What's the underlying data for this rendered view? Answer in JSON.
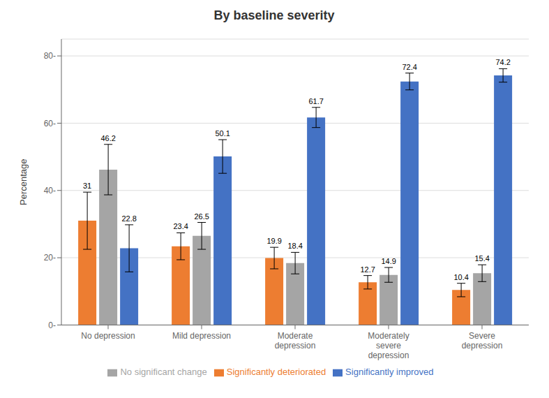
{
  "chart_data": {
    "type": "bar",
    "title": "By baseline severity",
    "ylabel": "Percentage",
    "categories": [
      "No depression",
      "Mild depression",
      "Moderate\ndepression",
      "Moderately\nsevere\ndepression",
      "Severe\ndepression"
    ],
    "series": [
      {
        "name": "Significantly deteriorated",
        "color": "#ED7D31",
        "values": [
          31,
          23.4,
          19.9,
          12.7,
          10.4
        ],
        "errors": [
          8.5,
          4.0,
          3.2,
          2.0,
          2.0
        ]
      },
      {
        "name": "No significant change",
        "color": "#A5A5A5",
        "values": [
          46.2,
          26.5,
          18.4,
          14.9,
          15.4
        ],
        "errors": [
          7.5,
          4.0,
          3.2,
          2.2,
          2.5
        ]
      },
      {
        "name": "Significantly improved",
        "color": "#4472C4",
        "values": [
          22.8,
          50.1,
          61.7,
          72.4,
          74.2
        ],
        "errors": [
          7.0,
          5.0,
          3.0,
          2.5,
          2.0
        ]
      }
    ],
    "ylim": [
      0,
      85
    ],
    "yticks": [
      {
        "value": 0,
        "label": "0-"
      },
      {
        "value": 20,
        "label": "20-"
      },
      {
        "value": 40,
        "label": "40-"
      },
      {
        "value": 60,
        "label": "60-"
      },
      {
        "value": 80,
        "label": "80-"
      }
    ],
    "grid": true,
    "legend": "bottom",
    "data_labels": true
  }
}
